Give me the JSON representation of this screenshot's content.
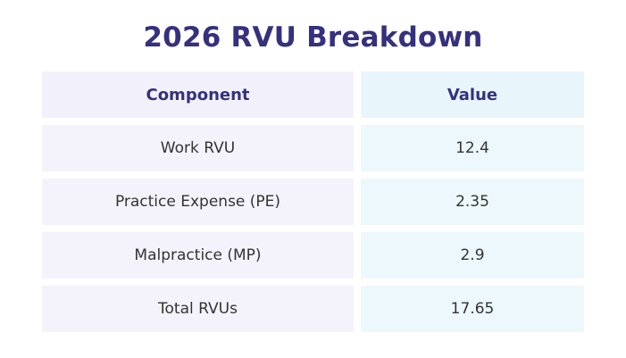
{
  "title": "2026 RVU Breakdown",
  "table": {
    "headers": [
      "Component",
      "Value"
    ],
    "rows": [
      {
        "component": "Work RVU",
        "value": "12.4"
      },
      {
        "component": "Practice Expense (PE)",
        "value": "2.35"
      },
      {
        "component": "Malpractice (MP)",
        "value": "2.9"
      },
      {
        "component": "Total RVUs",
        "value": "17.65"
      }
    ]
  },
  "colors": {
    "title": "#35317e",
    "component_bg": "#f4f3fc",
    "value_bg": "#edf8fc"
  }
}
